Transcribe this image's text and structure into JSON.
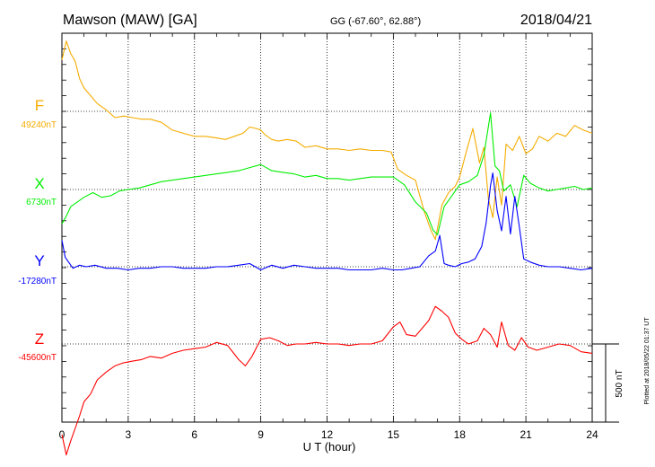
{
  "header": {
    "station": "Mawson (MAW)  [GA]",
    "coords": "GG (-67.60°,  62.88°)",
    "date": "2018/04/21"
  },
  "footer": {
    "xlabel": "U T (hour)",
    "plotted": "Plotted at 2018/05/22 01:37  UT",
    "scale_label": "500 nT"
  },
  "chart_data": {
    "type": "line",
    "title": "Mawson (MAW)  [GA]",
    "xlabel": "U T (hour)",
    "ylabel": "",
    "xlim": [
      0,
      24
    ],
    "xticks": [
      "0",
      "3",
      "6",
      "9",
      "12",
      "15",
      "18",
      "21",
      "24"
    ],
    "grid": true,
    "scale_bar_nT": 500,
    "series": [
      {
        "name": "F",
        "baseline_label": "49240nT",
        "baseline_nT": 49240,
        "color": "#f5ac00",
        "x": [
          0,
          0.2,
          0.4,
          0.6,
          0.8,
          1,
          1.3,
          1.6,
          2,
          2.4,
          2.8,
          3.2,
          3.6,
          4,
          4.5,
          5,
          5.5,
          6,
          6.5,
          7,
          7.4,
          7.8,
          8.2,
          8.5,
          8.8,
          9,
          9.2,
          9.5,
          9.8,
          10.2,
          10.6,
          11,
          11.5,
          12,
          12.5,
          13,
          13.5,
          14,
          14.5,
          14.9,
          15.2,
          15.6,
          16,
          16.4,
          16.7,
          16.9,
          17.2,
          17.5,
          17.8,
          18,
          18.3,
          18.6,
          18.9,
          19.1,
          19.3,
          19.5,
          19.7,
          19.9,
          20.1,
          20.4,
          20.7,
          21,
          21.3,
          21.6,
          22,
          22.4,
          22.8,
          23.2,
          23.6,
          24
        ],
        "y": [
          49570,
          49690,
          49610,
          49560,
          49450,
          49390,
          49340,
          49290,
          49250,
          49200,
          49210,
          49200,
          49190,
          49190,
          49170,
          49120,
          49100,
          49080,
          49080,
          49070,
          49060,
          49080,
          49100,
          49140,
          49130,
          49120,
          49090,
          49060,
          49050,
          49060,
          49050,
          49010,
          49020,
          49000,
          49000,
          48990,
          49000,
          48990,
          48990,
          48980,
          48870,
          48830,
          48800,
          48600,
          48480,
          48420,
          48640,
          48720,
          48760,
          48820,
          48980,
          49130,
          48910,
          49010,
          48680,
          48560,
          48820,
          48640,
          49030,
          48990,
          49080,
          48970,
          49000,
          49080,
          49050,
          49100,
          49080,
          49150,
          49120,
          49100
        ]
      },
      {
        "name": "X",
        "baseline_label": "6730nT",
        "baseline_nT": 6730,
        "color": "#00ee00",
        "x": [
          0,
          0.2,
          0.4,
          0.7,
          1,
          1.4,
          1.8,
          2.2,
          2.6,
          3,
          3.5,
          4,
          4.5,
          5,
          5.5,
          6,
          6.5,
          7,
          7.5,
          8,
          8.5,
          9,
          9.5,
          10,
          10.5,
          11,
          11.5,
          12,
          12.5,
          13,
          13.5,
          14,
          14.5,
          15,
          15.5,
          16,
          16.5,
          16.8,
          17,
          17.3,
          17.6,
          18,
          18.4,
          18.8,
          19.1,
          19.4,
          19.6,
          19.8,
          20,
          20.3,
          20.6,
          20.9,
          21.2,
          21.6,
          22,
          22.4,
          22.8,
          23.2,
          23.6,
          24
        ],
        "y": [
          6510,
          6560,
          6620,
          6650,
          6680,
          6710,
          6680,
          6690,
          6720,
          6730,
          6740,
          6760,
          6780,
          6790,
          6800,
          6810,
          6820,
          6830,
          6840,
          6850,
          6870,
          6890,
          6850,
          6840,
          6830,
          6810,
          6820,
          6800,
          6800,
          6790,
          6800,
          6810,
          6810,
          6810,
          6760,
          6650,
          6580,
          6470,
          6440,
          6620,
          6680,
          6760,
          6780,
          6820,
          6950,
          7220,
          6880,
          6850,
          6720,
          6760,
          6620,
          6820,
          6770,
          6740,
          6720,
          6730,
          6740,
          6750,
          6730,
          6740
        ]
      },
      {
        "name": "Y",
        "baseline_label": "-17280nT",
        "baseline_nT": -17280,
        "color": "#0000ff",
        "x": [
          0,
          0.15,
          0.3,
          0.5,
          0.8,
          1.1,
          1.5,
          2,
          2.5,
          3,
          3.5,
          4,
          4.5,
          5,
          5.5,
          6,
          6.5,
          7,
          7.5,
          8,
          8.5,
          9,
          9.5,
          10,
          10.5,
          11,
          11.5,
          12,
          12.5,
          13,
          13.5,
          14,
          14.5,
          15,
          15.4,
          15.8,
          16.2,
          16.6,
          16.9,
          17.1,
          17.3,
          17.5,
          17.8,
          18.1,
          18.4,
          18.7,
          19,
          19.2,
          19.4,
          19.5,
          19.7,
          19.9,
          20.1,
          20.3,
          20.5,
          20.7,
          20.9,
          21.2,
          21.6,
          22,
          22.5,
          23,
          23.5,
          24
        ],
        "y": [
          -17110,
          -17220,
          -17250,
          -17290,
          -17270,
          -17280,
          -17270,
          -17290,
          -17290,
          -17300,
          -17290,
          -17290,
          -17280,
          -17280,
          -17290,
          -17290,
          -17290,
          -17280,
          -17280,
          -17270,
          -17260,
          -17300,
          -17270,
          -17290,
          -17270,
          -17280,
          -17290,
          -17290,
          -17290,
          -17300,
          -17300,
          -17300,
          -17290,
          -17300,
          -17300,
          -17290,
          -17280,
          -17210,
          -17180,
          -17080,
          -17260,
          -17270,
          -17280,
          -17260,
          -17250,
          -17230,
          -17150,
          -17000,
          -16760,
          -16680,
          -16920,
          -17050,
          -16830,
          -17070,
          -16830,
          -17020,
          -17230,
          -17250,
          -17270,
          -17280,
          -17280,
          -17290,
          -17300,
          -17290
        ]
      },
      {
        "name": "Z",
        "baseline_label": "-45600nT",
        "baseline_nT": -45600,
        "color": "#ff0000",
        "x": [
          0,
          0.2,
          0.4,
          0.6,
          0.8,
          1,
          1.3,
          1.6,
          2,
          2.4,
          2.8,
          3.2,
          3.6,
          4,
          4.5,
          5,
          5.5,
          6,
          6.5,
          7,
          7.5,
          8,
          8.3,
          8.6,
          9,
          9.4,
          9.8,
          10.2,
          10.6,
          11,
          11.5,
          12,
          12.5,
          13,
          13.5,
          14,
          14.5,
          15,
          15.3,
          15.6,
          16,
          16.3,
          16.6,
          16.9,
          17.2,
          17.5,
          17.8,
          18.1,
          18.4,
          18.8,
          19.1,
          19.4,
          19.7,
          19.9,
          20.2,
          20.5,
          20.8,
          21.1,
          21.5,
          22,
          22.5,
          23,
          23.5,
          24
        ],
        "y": [
          -46180,
          -46310,
          -46220,
          -46140,
          -46060,
          -45970,
          -45920,
          -45830,
          -45780,
          -45740,
          -45720,
          -45710,
          -45700,
          -45680,
          -45690,
          -45660,
          -45640,
          -45630,
          -45620,
          -45590,
          -45610,
          -45700,
          -45740,
          -45680,
          -45570,
          -45560,
          -45580,
          -45610,
          -45600,
          -45600,
          -45590,
          -45600,
          -45600,
          -45610,
          -45600,
          -45600,
          -45580,
          -45490,
          -45460,
          -45540,
          -45550,
          -45500,
          -45450,
          -45360,
          -45390,
          -45430,
          -45530,
          -45570,
          -45600,
          -45580,
          -45500,
          -45540,
          -45620,
          -45460,
          -45610,
          -45640,
          -45560,
          -45620,
          -45640,
          -45620,
          -45600,
          -45610,
          -45650,
          -45660
        ]
      }
    ]
  }
}
